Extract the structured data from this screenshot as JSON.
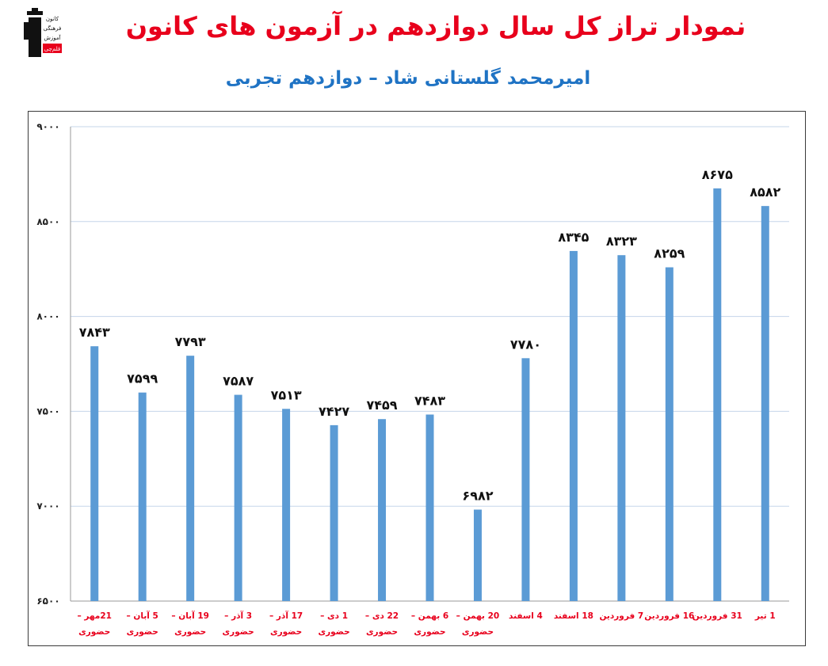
{
  "header": {
    "title": "نمودار تراز کل سال دوازدهم در آزمون های کانون",
    "subtitle": "امیرمحمد گلستانی شاد – دوازدهم تجربی",
    "logo_text": [
      "کانون",
      "فرهنگی",
      "آموزش",
      "قلم‌چی"
    ]
  },
  "colors": {
    "bar": "#5b9bd5",
    "title": "#e8001c",
    "subtitle": "#1f73c4",
    "category_labels": "#e8001c",
    "gridline": "#c5d5ea"
  },
  "chart_data": {
    "type": "bar",
    "title": "نمودار تراز کل سال دوازدهم در آزمون های کانون",
    "subtitle": "امیرمحمد گلستانی شاد – دوازدهم تجربی",
    "ylim": [
      6500,
      9000
    ],
    "yticks": [
      6500,
      7000,
      7500,
      8000,
      8500,
      9000
    ],
    "ytick_labels": [
      "۶۵۰۰",
      "۷۰۰۰",
      "۷۵۰۰",
      "۸۰۰۰",
      "۸۵۰۰",
      "۹۰۰۰"
    ],
    "grid": true,
    "categories": [
      [
        "21مهر –",
        "حضوری"
      ],
      [
        "5 آبان –",
        "حضوری"
      ],
      [
        "19 آبان –",
        "حضوری"
      ],
      [
        "3 آذر –",
        "حضوری"
      ],
      [
        "17 آذر –",
        "حضوری"
      ],
      [
        "1 دی –",
        "حضوری"
      ],
      [
        "22 دی –",
        "حضوری"
      ],
      [
        "6 بهمن –",
        "حضوری"
      ],
      [
        "20 بهمن –",
        "حضوری"
      ],
      [
        "4 اسفند"
      ],
      [
        "18 اسفند"
      ],
      [
        "7 فروردین"
      ],
      [
        "16 فروردین"
      ],
      [
        "31 فروردین"
      ],
      [
        "1 تیر"
      ]
    ],
    "values": [
      7843,
      7599,
      7793,
      7587,
      7513,
      7427,
      7459,
      7483,
      6982,
      7780,
      8345,
      8323,
      8259,
      8675,
      8582
    ],
    "value_labels": [
      "۷۸۴۳",
      "۷۵۹۹",
      "۷۷۹۳",
      "۷۵۸۷",
      "۷۵۱۳",
      "۷۴۲۷",
      "۷۴۵۹",
      "۷۴۸۳",
      "۶۹۸۲",
      "۷۷۸۰",
      "۸۳۴۵",
      "۸۳۲۳",
      "۸۲۵۹",
      "۸۶۷۵",
      "۸۵۸۲"
    ]
  }
}
